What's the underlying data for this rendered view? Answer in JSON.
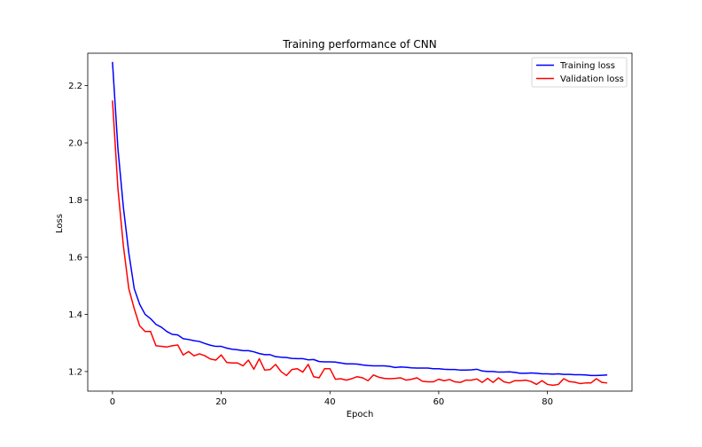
{
  "chart_data": {
    "type": "line",
    "title": "Training performance of CNN",
    "xlabel": "Epoch",
    "ylabel": "Loss",
    "xlim": [
      -4.55,
      95.55
    ],
    "ylim": [
      1.1315,
      2.3135
    ],
    "xticks": [
      0,
      20,
      40,
      60,
      80
    ],
    "yticks": [
      1.2,
      1.4,
      1.6,
      1.8,
      2.0,
      2.2
    ],
    "grid": false,
    "legend_position": "top-right",
    "x": [
      0,
      1,
      2,
      3,
      4,
      5,
      6,
      7,
      8,
      9,
      10,
      11,
      12,
      13,
      14,
      15,
      16,
      17,
      18,
      19,
      20,
      21,
      22,
      23,
      24,
      25,
      26,
      27,
      28,
      29,
      30,
      31,
      32,
      33,
      34,
      35,
      36,
      37,
      38,
      39,
      40,
      41,
      42,
      43,
      44,
      45,
      46,
      47,
      48,
      49,
      50,
      51,
      52,
      53,
      54,
      55,
      56,
      57,
      58,
      59,
      60,
      61,
      62,
      63,
      64,
      65,
      66,
      67,
      68,
      69,
      70,
      71,
      72,
      73,
      74,
      75,
      76,
      77,
      78,
      79,
      80,
      81,
      82,
      83,
      84,
      85,
      86,
      87,
      88,
      89,
      90,
      91
    ],
    "series": [
      {
        "name": "Training loss",
        "color": "#0000ff",
        "values": [
          2.283,
          1.98,
          1.775,
          1.615,
          1.49,
          1.435,
          1.4,
          1.385,
          1.365,
          1.355,
          1.34,
          1.33,
          1.328,
          1.315,
          1.312,
          1.308,
          1.305,
          1.298,
          1.292,
          1.288,
          1.288,
          1.282,
          1.278,
          1.276,
          1.273,
          1.273,
          1.269,
          1.263,
          1.259,
          1.259,
          1.252,
          1.25,
          1.249,
          1.246,
          1.245,
          1.245,
          1.241,
          1.242,
          1.235,
          1.234,
          1.234,
          1.233,
          1.23,
          1.227,
          1.227,
          1.226,
          1.223,
          1.221,
          1.22,
          1.22,
          1.22,
          1.218,
          1.214,
          1.216,
          1.215,
          1.213,
          1.212,
          1.212,
          1.212,
          1.21,
          1.21,
          1.208,
          1.207,
          1.207,
          1.205,
          1.205,
          1.206,
          1.208,
          1.202,
          1.2,
          1.2,
          1.198,
          1.198,
          1.199,
          1.197,
          1.194,
          1.194,
          1.195,
          1.194,
          1.192,
          1.192,
          1.191,
          1.192,
          1.19,
          1.19,
          1.189,
          1.189,
          1.188,
          1.186,
          1.186,
          1.187,
          1.188
        ]
      },
      {
        "name": "Validation loss",
        "color": "#ff0000",
        "values": [
          2.148,
          1.84,
          1.64,
          1.49,
          1.42,
          1.36,
          1.34,
          1.34,
          1.29,
          1.288,
          1.286,
          1.29,
          1.293,
          1.258,
          1.27,
          1.255,
          1.262,
          1.255,
          1.244,
          1.24,
          1.258,
          1.232,
          1.23,
          1.23,
          1.22,
          1.24,
          1.208,
          1.245,
          1.205,
          1.207,
          1.225,
          1.2,
          1.186,
          1.207,
          1.21,
          1.198,
          1.225,
          1.182,
          1.178,
          1.21,
          1.21,
          1.173,
          1.175,
          1.17,
          1.175,
          1.182,
          1.178,
          1.168,
          1.188,
          1.18,
          1.176,
          1.175,
          1.176,
          1.178,
          1.17,
          1.173,
          1.178,
          1.166,
          1.164,
          1.164,
          1.173,
          1.168,
          1.172,
          1.164,
          1.162,
          1.17,
          1.17,
          1.174,
          1.162,
          1.176,
          1.162,
          1.178,
          1.164,
          1.16,
          1.168,
          1.168,
          1.17,
          1.165,
          1.155,
          1.168,
          1.155,
          1.152,
          1.155,
          1.175,
          1.165,
          1.163,
          1.158,
          1.16,
          1.16,
          1.175,
          1.162,
          1.16
        ]
      }
    ]
  }
}
